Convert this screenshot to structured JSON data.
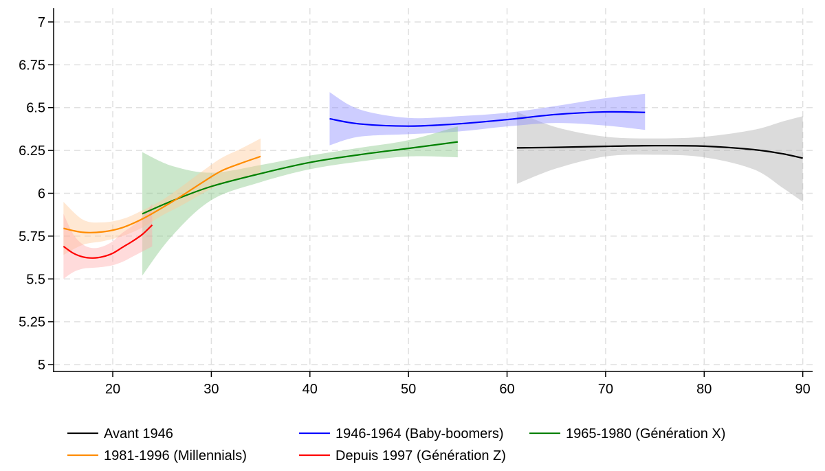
{
  "chart_data": {
    "type": "line",
    "title": "",
    "xlabel": "",
    "ylabel": "",
    "xlim": [
      14,
      91
    ],
    "ylim": [
      4.96,
      7.08
    ],
    "x_ticks": [
      20,
      30,
      40,
      50,
      60,
      70,
      80,
      90
    ],
    "y_ticks": [
      5,
      5.25,
      5.5,
      5.75,
      6,
      6.25,
      6.5,
      6.75,
      7
    ],
    "y_tick_labels": [
      "5",
      "5.25",
      "5.5",
      "5.75",
      "6",
      "6.25",
      "6.5",
      "6.75",
      "7"
    ],
    "grid": true,
    "legend_position": "bottom",
    "series": [
      {
        "name": "Avant 1946",
        "color": "#000000",
        "band_color": "#a9a9a9",
        "x": [
          61,
          65,
          70,
          75,
          80,
          85,
          88,
          90
        ],
        "y": [
          6.265,
          6.268,
          6.274,
          6.278,
          6.275,
          6.255,
          6.23,
          6.205
        ],
        "lower": [
          6.055,
          6.145,
          6.215,
          6.225,
          6.21,
          6.14,
          6.03,
          5.95
        ],
        "upper": [
          6.475,
          6.385,
          6.33,
          6.32,
          6.33,
          6.37,
          6.42,
          6.45
        ]
      },
      {
        "name": "1946-1964 (Baby-boomers)",
        "color": "#0000ff",
        "band_color": "#8888ff",
        "x": [
          42,
          45,
          50,
          55,
          60,
          65,
          70,
          74
        ],
        "y": [
          6.435,
          6.405,
          6.392,
          6.405,
          6.43,
          6.46,
          6.475,
          6.472
        ],
        "lower": [
          6.28,
          6.33,
          6.345,
          6.36,
          6.39,
          6.41,
          6.395,
          6.37
        ],
        "upper": [
          6.59,
          6.49,
          6.44,
          6.45,
          6.47,
          6.51,
          6.555,
          6.58
        ]
      },
      {
        "name": "1965-1980 (Génération X)",
        "color": "#008000",
        "band_color": "#82c682",
        "x": [
          23,
          26,
          30,
          35,
          40,
          45,
          50,
          55
        ],
        "y": [
          5.88,
          5.955,
          6.04,
          6.115,
          6.18,
          6.225,
          6.262,
          6.3
        ],
        "lower": [
          5.52,
          5.75,
          5.96,
          6.065,
          6.14,
          6.185,
          6.215,
          6.21
        ],
        "upper": [
          6.24,
          6.16,
          6.12,
          6.165,
          6.22,
          6.265,
          6.31,
          6.39
        ]
      },
      {
        "name": "1981-1996 (Millennials)",
        "color": "#ff8c00",
        "band_color": "#ffc896",
        "x": [
          15,
          17,
          19,
          21,
          23,
          25,
          27,
          29,
          31,
          33,
          35
        ],
        "y": [
          5.795,
          5.772,
          5.775,
          5.8,
          5.85,
          5.915,
          5.985,
          6.06,
          6.13,
          6.175,
          6.215
        ],
        "lower": [
          5.64,
          5.7,
          5.72,
          5.75,
          5.8,
          5.87,
          5.93,
          5.995,
          6.055,
          6.09,
          6.11
        ],
        "upper": [
          5.95,
          5.845,
          5.83,
          5.85,
          5.9,
          5.96,
          6.04,
          6.125,
          6.205,
          6.26,
          6.32
        ]
      },
      {
        "name": "Depuis 1997 (Génération Z)",
        "color": "#ff0000",
        "band_color": "#ffaaaa",
        "x": [
          15,
          16,
          17,
          18,
          19,
          20,
          21,
          22,
          23,
          24
        ],
        "y": [
          5.69,
          5.65,
          5.628,
          5.622,
          5.63,
          5.65,
          5.685,
          5.72,
          5.76,
          5.815
        ],
        "lower": [
          5.5,
          5.54,
          5.56,
          5.565,
          5.57,
          5.58,
          5.6,
          5.63,
          5.66,
          5.69
        ],
        "upper": [
          5.88,
          5.76,
          5.7,
          5.68,
          5.69,
          5.72,
          5.77,
          5.81,
          5.86,
          5.94
        ]
      }
    ],
    "legend_order": [
      0,
      1,
      2,
      3,
      4
    ]
  }
}
